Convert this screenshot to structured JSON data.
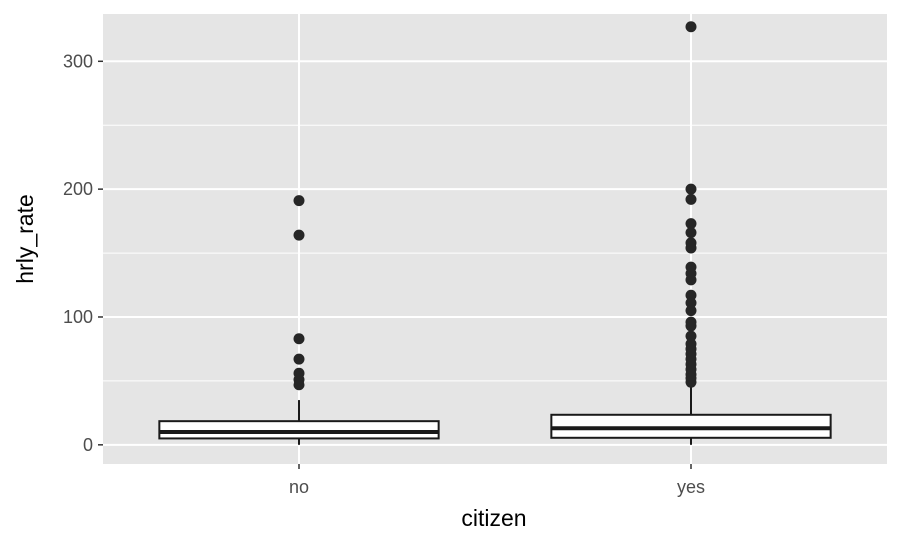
{
  "chart_data": {
    "type": "boxplot",
    "title": "",
    "xlabel": "citizen",
    "ylabel": "hrly_rate",
    "categories": [
      "no",
      "yes"
    ],
    "ylim": [
      -15,
      337
    ],
    "y_ticks": [
      0,
      100,
      200,
      300
    ],
    "y_tick_labels": [
      "0",
      "100",
      "200",
      "300"
    ],
    "grid": true,
    "legend": "none",
    "colors": {
      "panel_background": "#e5e5e5",
      "grid": "#ffffff",
      "box_fill": "#ffffff",
      "box_stroke": "#1a1a1a",
      "outlier": "#262626"
    },
    "boxes": [
      {
        "category": "no",
        "whisker_low": 0,
        "q1": 5,
        "median": 10,
        "q3": 18.5,
        "whisker_high": 35,
        "outliers": [
          191,
          164,
          83,
          67,
          56,
          51,
          47
        ]
      },
      {
        "category": "yes",
        "whisker_low": 0,
        "q1": 5.5,
        "median": 13,
        "q3": 23.5,
        "whisker_high": 47,
        "outliers": [
          327,
          200,
          192,
          173,
          166,
          158,
          154,
          139,
          134,
          129,
          117,
          111,
          105,
          96,
          93,
          85,
          79,
          75,
          71,
          67,
          63,
          59,
          55,
          52,
          49
        ]
      }
    ]
  }
}
